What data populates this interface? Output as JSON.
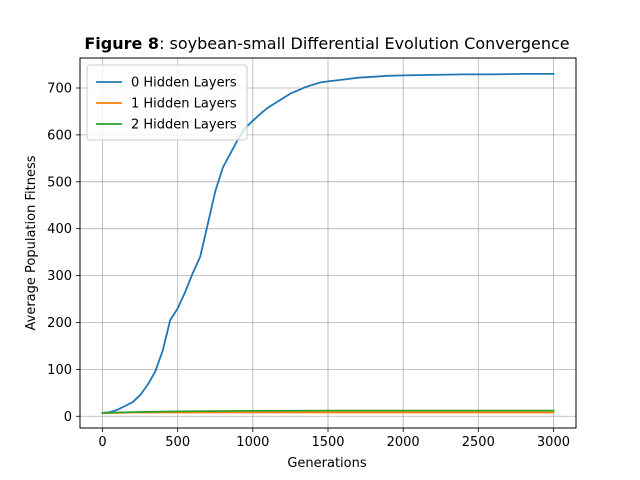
{
  "chart_data": {
    "type": "line",
    "title_bold": "Figure 8",
    "title_rest": ": soybean-small Differential Evolution Convergence",
    "xlabel": "Generations",
    "ylabel": "Average Population Fitness",
    "xlim": [
      -150,
      3150
    ],
    "ylim": [
      -25,
      764
    ],
    "xticks": [
      0,
      500,
      1000,
      1500,
      2000,
      2500,
      3000
    ],
    "yticks": [
      0,
      100,
      200,
      300,
      400,
      500,
      600,
      700
    ],
    "grid": true,
    "legend_position": "top-left",
    "series": [
      {
        "name": "0 Hidden Layers",
        "color": "#1f77b4",
        "x": [
          0,
          50,
          100,
          150,
          200,
          250,
          300,
          350,
          400,
          450,
          500,
          550,
          600,
          650,
          700,
          750,
          800,
          850,
          900,
          950,
          1000,
          1050,
          1100,
          1150,
          1200,
          1250,
          1300,
          1350,
          1400,
          1450,
          1500,
          1600,
          1700,
          1800,
          1900,
          2000,
          2200,
          2400,
          2600,
          2800,
          3000
        ],
        "y": [
          7,
          9,
          14,
          22,
          30,
          45,
          67,
          95,
          140,
          205,
          230,
          265,
          305,
          340,
          410,
          480,
          530,
          560,
          590,
          615,
          630,
          645,
          658,
          668,
          678,
          688,
          695,
          702,
          707,
          712,
          714,
          718,
          722,
          724,
          726,
          727,
          728,
          729,
          729,
          730,
          730
        ]
      },
      {
        "name": "1 Hidden Layers",
        "color": "#ff7f0e",
        "x": [
          0,
          100,
          200,
          300,
          500,
          1000,
          1500,
          2000,
          2500,
          3000
        ],
        "y": [
          7,
          7.5,
          8,
          8,
          8,
          8,
          8,
          8,
          8,
          8
        ]
      },
      {
        "name": "2 Hidden Layers",
        "color": "#2ca02c",
        "x": [
          0,
          100,
          200,
          300,
          400,
          500,
          700,
          1000,
          1500,
          2000,
          2500,
          3000
        ],
        "y": [
          7,
          8,
          9,
          9.5,
          10,
          10.5,
          11,
          11.5,
          12,
          12,
          12,
          12
        ]
      }
    ]
  }
}
